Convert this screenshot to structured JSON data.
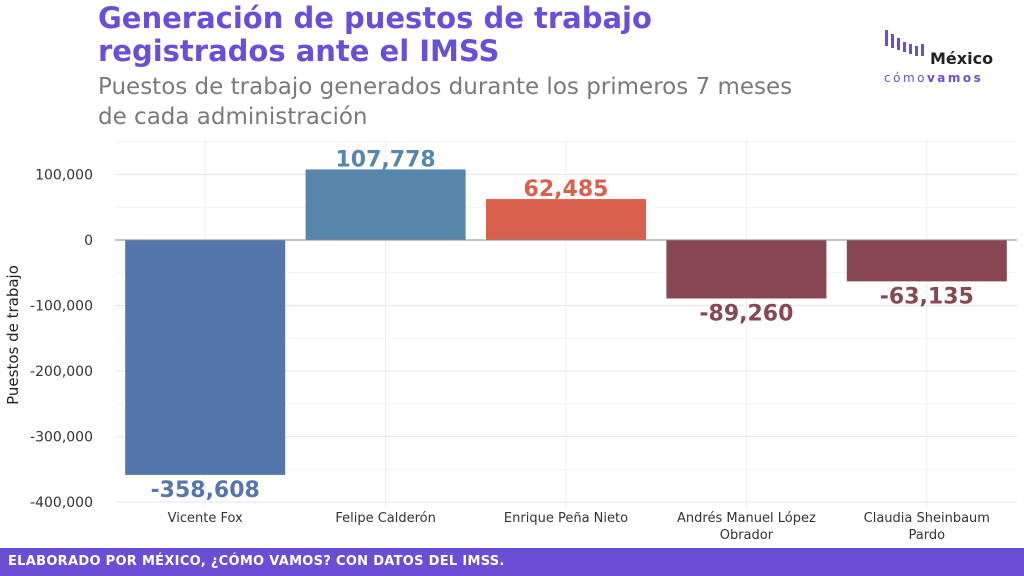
{
  "header": {
    "title": "Generación de puestos de trabajo registrados ante el IMSS",
    "subtitle": "Puestos de trabajo generados durante los primeros 7 meses de cada administración"
  },
  "logo": {
    "name": "México",
    "tagline_part1": "cómo",
    "tagline_part2": "vamos",
    "icon": "bar-logo-icon"
  },
  "footer": {
    "text": "ELABORADO POR MÉXICO, ¿CÓMO VAMOS? CON DATOS DEL IMSS."
  },
  "chart_data": {
    "type": "bar",
    "title": "Generación de puestos de trabajo registrados ante el IMSS",
    "subtitle": "Puestos de trabajo generados durante los primeros 7 meses de cada administración",
    "xlabel": "",
    "ylabel": "Puestos de trabajo",
    "categories": [
      "Vicente Fox",
      "Felipe Calderón",
      "Enrique Peña Nieto",
      "Andrés Manuel López Obrador",
      "Claudia Sheinbaum Pardo"
    ],
    "category_lines": [
      [
        "Vicente Fox"
      ],
      [
        "Felipe Calderón"
      ],
      [
        "Enrique Peña Nieto"
      ],
      [
        "Andrés Manuel López",
        "Obrador"
      ],
      [
        "Claudia Sheinbaum",
        "Pardo"
      ]
    ],
    "values": [
      -358608,
      107778,
      62485,
      -89260,
      -63135
    ],
    "value_labels": [
      "-358,608",
      "107,778",
      "62,485",
      "-89,260",
      "-63,135"
    ],
    "colors": [
      "#5575ac",
      "#5786ab",
      "#d9604c",
      "#874853",
      "#874853"
    ],
    "ylim": [
      -400000,
      150000
    ],
    "yticks": [
      100000,
      0,
      -100000,
      -200000,
      -300000,
      -400000
    ],
    "ytick_labels": [
      "100,000",
      "0",
      "-100,000",
      "-200,000",
      "-300,000",
      "-400,000"
    ],
    "grid": true,
    "legend": "none"
  }
}
